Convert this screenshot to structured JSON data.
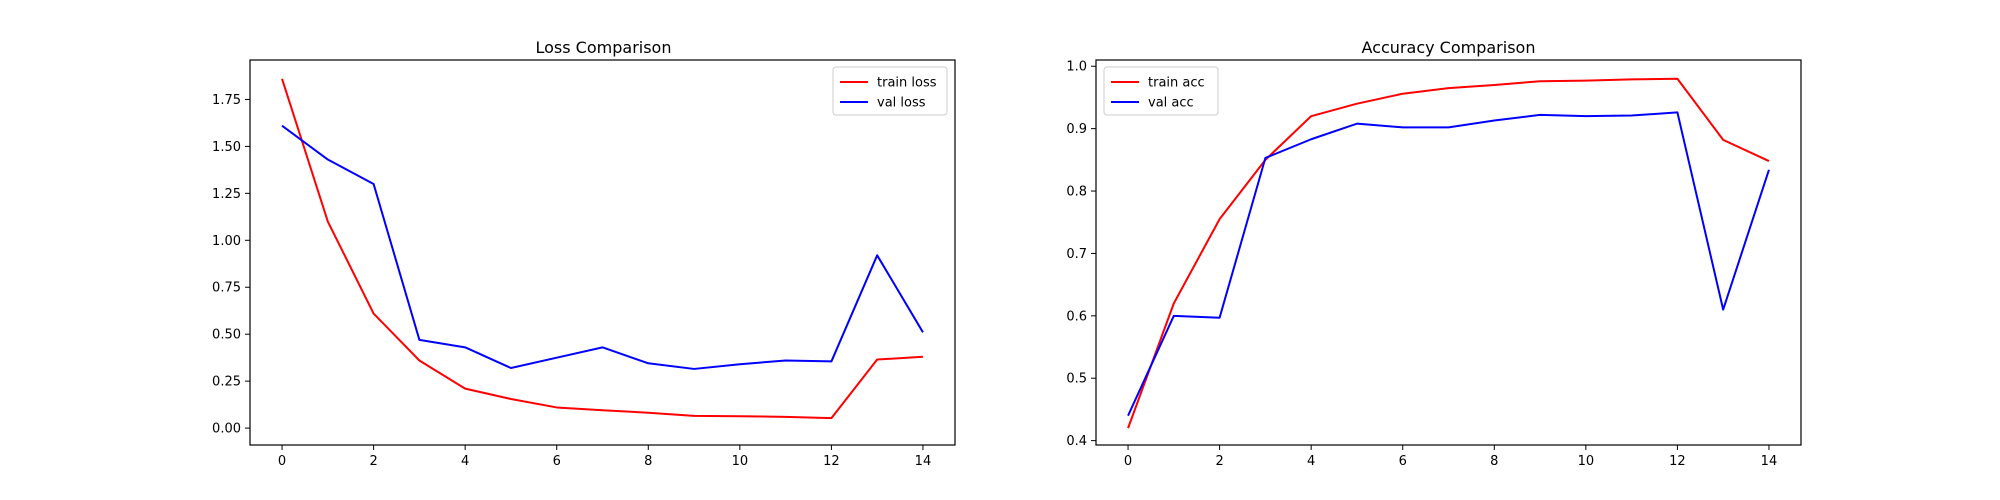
{
  "chart_data": [
    {
      "type": "line",
      "title": "Loss Comparison",
      "xlabel": "",
      "ylabel": "",
      "x": [
        0,
        1,
        2,
        3,
        4,
        5,
        6,
        7,
        8,
        9,
        10,
        11,
        12,
        13,
        14
      ],
      "xlim": [
        -0.7,
        14.7
      ],
      "ylim": [
        -0.09,
        1.96
      ],
      "xticks": [
        0,
        2,
        4,
        6,
        8,
        10,
        12,
        14
      ],
      "yticks": [
        0.0,
        0.25,
        0.5,
        0.75,
        1.0,
        1.25,
        1.5,
        1.75
      ],
      "ytick_labels": [
        "0.00",
        "0.25",
        "0.50",
        "0.75",
        "1.00",
        "1.25",
        "1.50",
        "1.75"
      ],
      "legend_position": "upper right",
      "grid": false,
      "series": [
        {
          "name": "train loss",
          "color": "#ff0000",
          "values": [
            1.86,
            1.1,
            0.61,
            0.36,
            0.21,
            0.155,
            0.11,
            0.095,
            0.082,
            0.065,
            0.063,
            0.06,
            0.053,
            0.365,
            0.38
          ]
        },
        {
          "name": "val loss",
          "color": "#0000ff",
          "values": [
            1.61,
            1.43,
            1.3,
            0.47,
            0.43,
            0.32,
            0.375,
            0.43,
            0.345,
            0.315,
            0.34,
            0.36,
            0.355,
            0.92,
            0.51
          ]
        }
      ]
    },
    {
      "type": "line",
      "title": "Accuracy Comparison",
      "xlabel": "",
      "ylabel": "",
      "x": [
        0,
        1,
        2,
        3,
        4,
        5,
        6,
        7,
        8,
        9,
        10,
        11,
        12,
        13,
        14
      ],
      "xlim": [
        -0.7,
        14.7
      ],
      "ylim": [
        0.393,
        1.01
      ],
      "xticks": [
        0,
        2,
        4,
        6,
        8,
        10,
        12,
        14
      ],
      "yticks": [
        0.4,
        0.5,
        0.6,
        0.7,
        0.8,
        0.9,
        1.0
      ],
      "ytick_labels": [
        "0.4",
        "0.5",
        "0.6",
        "0.7",
        "0.8",
        "0.9",
        "1.0"
      ],
      "legend_position": "upper left",
      "grid": false,
      "series": [
        {
          "name": "train acc",
          "color": "#ff0000",
          "values": [
            0.42,
            0.62,
            0.755,
            0.85,
            0.92,
            0.94,
            0.956,
            0.965,
            0.97,
            0.976,
            0.977,
            0.979,
            0.98,
            0.882,
            0.848
          ]
        },
        {
          "name": "val acc",
          "color": "#0000ff",
          "values": [
            0.44,
            0.6,
            0.597,
            0.853,
            0.883,
            0.908,
            0.902,
            0.902,
            0.913,
            0.922,
            0.92,
            0.921,
            0.926,
            0.61,
            0.834
          ]
        }
      ]
    }
  ]
}
